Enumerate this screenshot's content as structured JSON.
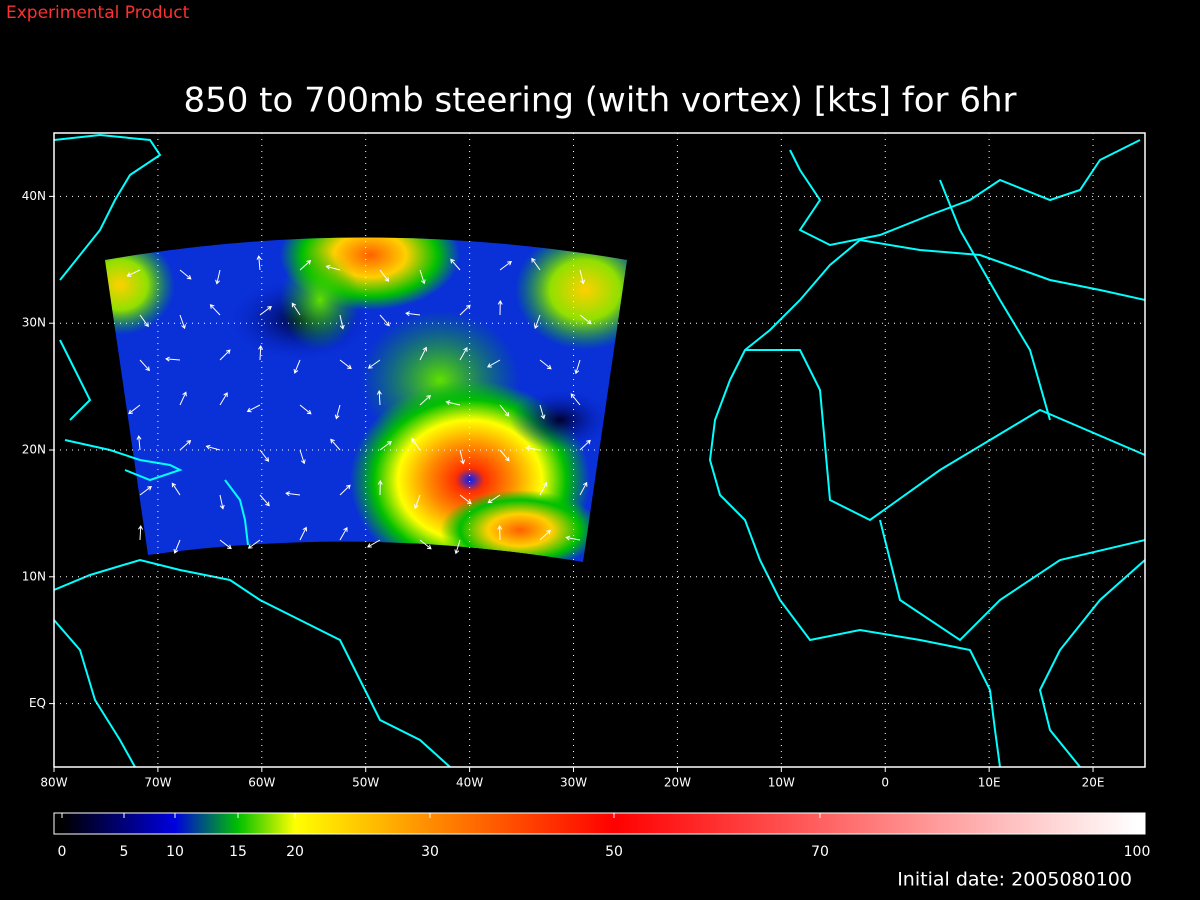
{
  "header": {
    "product": "Experimental Product",
    "title": "850 to 700mb steering (with vortex) [kts] for 6hr",
    "initial_date": "Initial date: 2005080100"
  },
  "map": {
    "xlim": [
      -80,
      25
    ],
    "ylim": [
      -5,
      45
    ],
    "xticks": [
      {
        "value": -80,
        "label": "80W"
      },
      {
        "value": -70,
        "label": "70W"
      },
      {
        "value": -60,
        "label": "60W"
      },
      {
        "value": -50,
        "label": "50W"
      },
      {
        "value": -40,
        "label": "40W"
      },
      {
        "value": -30,
        "label": "30W"
      },
      {
        "value": -20,
        "label": "20W"
      },
      {
        "value": -10,
        "label": "10W"
      },
      0,
      {
        "value": 10,
        "label": "10E"
      },
      {
        "value": 20,
        "label": "20E"
      }
    ],
    "yticks": [
      {
        "value": 0,
        "label": "EQ"
      },
      {
        "value": 10,
        "label": "10N"
      },
      {
        "value": 20,
        "label": "20N"
      },
      {
        "value": 30,
        "label": "30N"
      },
      {
        "value": 40,
        "label": "40N"
      }
    ],
    "grid": true,
    "coast_color": "#00ffff"
  },
  "colorbar": {
    "range": [
      0,
      100
    ],
    "ticks": [
      0,
      5,
      10,
      15,
      20,
      30,
      50,
      70,
      100
    ],
    "colors": [
      "#000000",
      "#00007a",
      "#0000e0",
      "#00c000",
      "#ffff00",
      "#ff8c00",
      "#ff0000",
      "#ff6060",
      "#ffffff"
    ]
  }
}
